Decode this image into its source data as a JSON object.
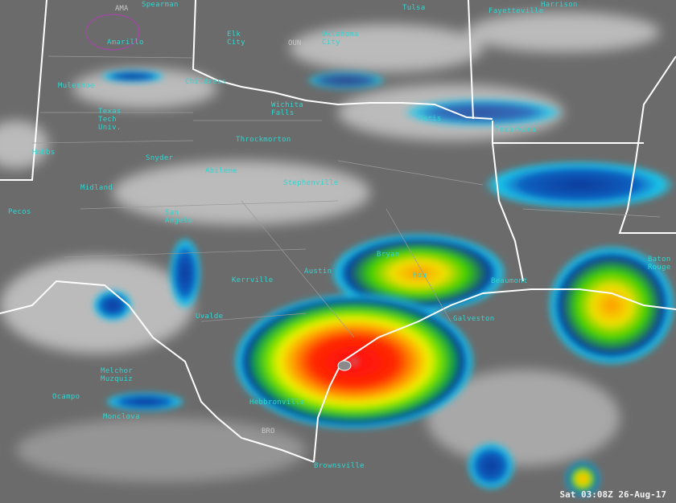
{
  "timestamp": "Sat 03:08Z 26-Aug-17",
  "colors": {
    "background": "#6b6b6b",
    "cloud": "#d8d8d8",
    "label": "#2fd6d0",
    "border": "#ffffff",
    "cold_scale": [
      "#1a1ac8",
      "#0a3a9a",
      "#19c9ee",
      "#12a040",
      "#8cf000",
      "#f0f000",
      "#ff9a00",
      "#ff2000"
    ]
  },
  "stations": {
    "ama": "AMA",
    "oun": "OUN",
    "bro": "BRO"
  },
  "cities": {
    "spearman": "Spearman",
    "amarillo": "Amarillo",
    "elk_city": "Elk\nCity",
    "oklahoma_city": "Oklahoma\nCity",
    "tulsa": "Tulsa",
    "fayetteville": "Fayetteville",
    "harrison": "Harrison",
    "muleshoe": "Muleshoe",
    "childress": "Childress",
    "wichita_falls": "Wichita\nFalls",
    "texas_tech": "Texas\nTech\nUniv.",
    "throckmorton": "Throckmorton",
    "hobbs": "Hobbs",
    "snyder": "Snyder",
    "abilene": "Abilene",
    "stephenville": "Stephenville",
    "midland": "Midland",
    "pecos": "Pecos",
    "san_angelo": "San\nAngelo",
    "kerrville": "Kerrville",
    "austin": "Austin",
    "uvalde": "Uvalde",
    "melchor_muzquiz": "Melchor\nMuzquiz",
    "ocampo": "Ocampo",
    "monclova": "Monclova",
    "hebbronville": "Hebbronville",
    "brownsville": "Brownsville",
    "paris": "Paris",
    "texarkana": "Texarkana",
    "bryan": "Bryan",
    "houston": "Hou",
    "beaumont": "Beaumont",
    "galveston": "Galveston",
    "baton_rouge": "Baton\nRouge"
  }
}
